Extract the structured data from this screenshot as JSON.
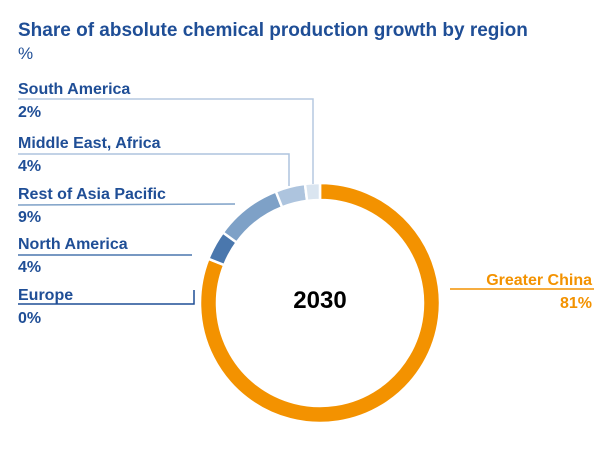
{
  "chart_data": {
    "type": "pie",
    "style": "donut",
    "title": "Share of absolute chemical production growth by region",
    "unit": "%",
    "center_label": "2030",
    "slices": [
      {
        "label": "Greater China",
        "value": 81,
        "display": "81%",
        "color": "#f39200"
      },
      {
        "label": "Europe",
        "value": 0,
        "display": "0%",
        "color": "#1f4e96"
      },
      {
        "label": "North America",
        "value": 4,
        "display": "4%",
        "color": "#4a77ad"
      },
      {
        "label": "Rest of Asia Pacific",
        "value": 9,
        "display": "9%",
        "color": "#7ea1c7"
      },
      {
        "label": "Middle East, Africa",
        "value": 4,
        "display": "4%",
        "color": "#adc4de"
      },
      {
        "label": "South America",
        "value": 2,
        "display": "2%",
        "color": "#dae5f0"
      }
    ]
  }
}
